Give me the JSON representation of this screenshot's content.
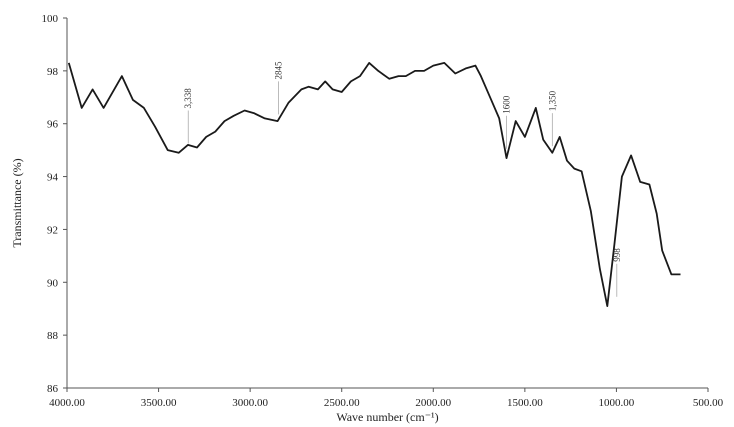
{
  "chart_data": {
    "type": "line",
    "title": "",
    "xlabel": "Wave number (cm⁻¹)",
    "ylabel": "Transmittance (%)",
    "xlim": [
      4000,
      500
    ],
    "ylim": [
      86,
      100
    ],
    "x_reversed": true,
    "grid": false,
    "legend": "none",
    "x_ticks": [
      {
        "value": 4000,
        "label": "4000.00"
      },
      {
        "value": 3500,
        "label": "3500.00"
      },
      {
        "value": 3000,
        "label": "3000.00"
      },
      {
        "value": 2500,
        "label": "2500.00"
      },
      {
        "value": 2000,
        "label": "2000.00"
      },
      {
        "value": 1500,
        "label": "1500.00"
      },
      {
        "value": 1000,
        "label": "1000.00"
      },
      {
        "value": 500,
        "label": "500.00"
      }
    ],
    "y_ticks": [
      {
        "value": 86,
        "label": "86"
      },
      {
        "value": 88,
        "label": "88"
      },
      {
        "value": 90,
        "label": "90"
      },
      {
        "value": 92,
        "label": "92"
      },
      {
        "value": 94,
        "label": "94"
      },
      {
        "value": 96,
        "label": "96"
      },
      {
        "value": 98,
        "label": "98"
      },
      {
        "value": 100,
        "label": "100"
      }
    ],
    "series": [
      {
        "color": "#1a1a1a",
        "x": [
          3990,
          3920,
          3860,
          3800,
          3700,
          3640,
          3580,
          3520,
          3450,
          3390,
          3340,
          3290,
          3240,
          3190,
          3140,
          3090,
          3030,
          2980,
          2920,
          2850,
          2790,
          2720,
          2680,
          2630,
          2590,
          2550,
          2500,
          2450,
          2400,
          2350,
          2300,
          2240,
          2190,
          2150,
          2100,
          2050,
          2000,
          1940,
          1880,
          1820,
          1770,
          1740,
          1690,
          1640,
          1600,
          1550,
          1500,
          1440,
          1400,
          1350,
          1310,
          1270,
          1230,
          1190,
          1140,
          1090,
          1050,
          1010,
          970,
          920,
          870,
          820,
          780,
          750,
          700,
          650
        ],
        "y": [
          98.3,
          96.6,
          97.3,
          96.6,
          97.8,
          96.9,
          96.6,
          95.9,
          95.0,
          94.9,
          95.2,
          95.1,
          95.5,
          95.7,
          96.1,
          96.3,
          96.5,
          96.4,
          96.2,
          96.1,
          96.8,
          97.3,
          97.4,
          97.3,
          97.6,
          97.3,
          97.2,
          97.6,
          97.8,
          98.3,
          98.0,
          97.7,
          97.8,
          97.8,
          98.0,
          98.0,
          98.2,
          98.3,
          97.9,
          98.1,
          98.2,
          97.8,
          97.0,
          96.2,
          94.7,
          96.1,
          95.5,
          96.6,
          95.4,
          94.9,
          95.5,
          94.6,
          94.3,
          94.2,
          92.7,
          90.5,
          89.1,
          91.5,
          94.0,
          94.8,
          93.8,
          93.7,
          92.6,
          91.2,
          90.3,
          90.3
        ]
      }
    ],
    "annotations": [
      {
        "x": 3338,
        "y": 95.1,
        "label": "3,338"
      },
      {
        "x": 2845,
        "y": 96.2,
        "label": "2845"
      },
      {
        "x": 1600,
        "y": 94.9,
        "label": "1600"
      },
      {
        "x": 1350,
        "y": 95.0,
        "label": "1,350"
      },
      {
        "x": 998,
        "y": 89.3,
        "label": "998"
      }
    ]
  }
}
